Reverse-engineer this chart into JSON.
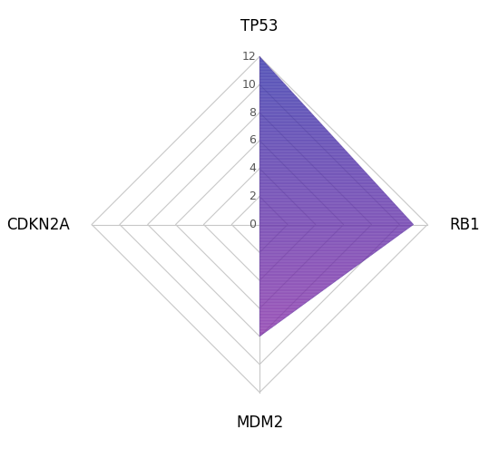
{
  "categories": [
    "TP53",
    "RB1",
    "MDM2",
    "CDKN2A"
  ],
  "values": [
    12,
    11,
    8,
    0
  ],
  "max_val": 12,
  "tick_step": 2,
  "grid_color": "#c8c8c8",
  "fill_color_top": "#3333aa",
  "fill_color_bottom": "#8833aa",
  "background_color": "#ffffff",
  "label_fontsize": 12,
  "tick_fontsize": 9,
  "figsize": [
    5.5,
    4.95
  ],
  "dpi": 100
}
